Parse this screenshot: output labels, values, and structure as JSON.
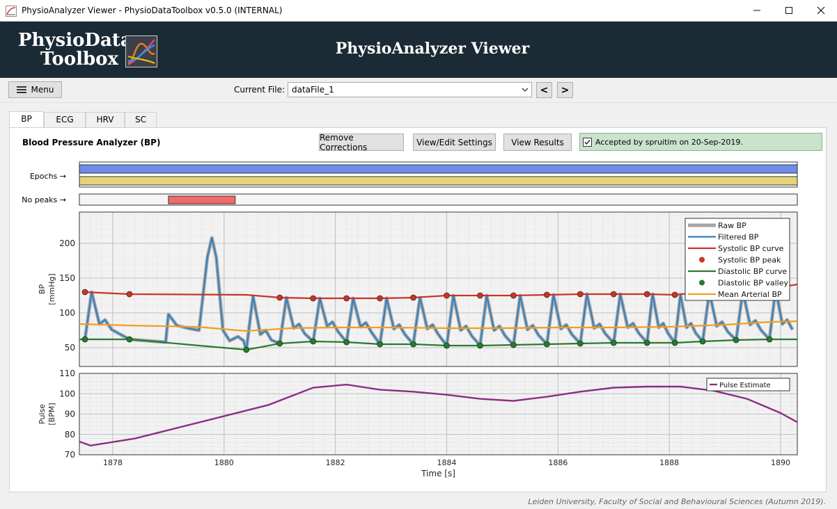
{
  "window": {
    "title": "PhysioAnalyzer Viewer  -  PhysioDataToolbox v0.5.0 (INTERNAL)",
    "icon": "app-icon",
    "controls": [
      "minimize-icon",
      "maximize-icon",
      "close-icon"
    ]
  },
  "header": {
    "logo_line1": "PhysioData",
    "logo_line2": "Toolbox",
    "title": "PhysioAnalyzer Viewer"
  },
  "toolbar": {
    "menu_label": "Menu",
    "current_file_label": "Current File:",
    "current_file_value": "dataFile_1",
    "prev_label": "<",
    "next_label": ">"
  },
  "tabs": [
    {
      "label": "BP",
      "active": true
    },
    {
      "label": "ECG",
      "active": false
    },
    {
      "label": "HRV",
      "active": false
    },
    {
      "label": "SC",
      "active": false
    }
  ],
  "panel": {
    "title": "Blood Pressure Analyzer (BP)",
    "remove_corrections": "Remove Corrections",
    "view_edit_settings": "View/Edit Settings",
    "view_results": "View Results",
    "accepted_text": "Accepted by spruitim on 20-Sep-2019.",
    "accepted_checked": true,
    "accepted_color": "#c9e3cc"
  },
  "epochs": {
    "label": "Epochs →",
    "bars": [
      {
        "color": "#6f8ce8",
        "start": 1877.4,
        "end": 1890.3
      },
      {
        "color": "#e6d37a",
        "start": 1877.4,
        "end": 1890.3
      }
    ]
  },
  "no_peaks": {
    "label": "No peaks →",
    "color": "#f26a6a",
    "start": 1879.0,
    "end": 1880.2
  },
  "chart_data": [
    {
      "type": "line",
      "ylabel": "BP\n[mmHg]",
      "ylabel_line1": "BP",
      "ylabel_line2": "[mmHg]",
      "xlim": [
        1877.4,
        1890.3
      ],
      "ylim": [
        23,
        245
      ],
      "yticks": [
        50,
        100,
        150,
        200
      ],
      "grid": true,
      "legend_position": "top-right",
      "series": [
        {
          "name": "Raw BP",
          "color": "#a6a6a6"
        },
        {
          "name": "Filtered BP",
          "color": "#2f7fc1"
        },
        {
          "name": "Systolic BP curve",
          "color": "#c8332b",
          "x": [
            1877.5,
            1878.3,
            1880.4,
            1881.0,
            1881.6,
            1882.2,
            1882.8,
            1883.4,
            1884.0,
            1884.6,
            1885.2,
            1885.8,
            1886.4,
            1887.0,
            1887.6,
            1888.1,
            1888.6,
            1889.2,
            1889.8,
            1890.3
          ],
          "y": [
            130,
            127,
            126,
            122,
            121,
            121,
            121,
            122,
            125,
            125,
            125,
            126,
            127,
            127,
            127,
            126,
            130,
            131,
            134,
            141
          ]
        },
        {
          "name": "Systolic BP peak",
          "color": "#c0392b",
          "x": [
            1877.5,
            1878.3,
            1881.0,
            1881.6,
            1882.2,
            1882.8,
            1883.4,
            1884.0,
            1884.6,
            1885.2,
            1885.8,
            1886.4,
            1887.0,
            1887.6,
            1888.1,
            1888.6,
            1889.2,
            1889.8
          ],
          "y": [
            130,
            127,
            122,
            121,
            121,
            121,
            122,
            125,
            125,
            125,
            126,
            127,
            127,
            127,
            126,
            130,
            131,
            134
          ]
        },
        {
          "name": "Diastolic BP curve",
          "color": "#2a7a2e",
          "x": [
            1877.4,
            1877.5,
            1878.3,
            1880.4,
            1881.0,
            1881.6,
            1882.2,
            1882.8,
            1883.4,
            1884.0,
            1884.6,
            1885.2,
            1885.8,
            1886.4,
            1887.0,
            1887.6,
            1888.1,
            1888.6,
            1889.2,
            1889.8,
            1890.3
          ],
          "y": [
            62,
            62,
            62,
            47,
            56,
            59,
            58,
            55,
            55,
            53,
            53,
            54,
            55,
            56,
            57,
            57,
            57,
            59,
            61,
            62,
            62
          ]
        },
        {
          "name": "Diastolic BP valley",
          "color": "#2a7a2e",
          "x": [
            1877.5,
            1878.3,
            1880.4,
            1881.0,
            1881.6,
            1882.2,
            1882.8,
            1883.4,
            1884.0,
            1884.6,
            1885.2,
            1885.8,
            1886.4,
            1887.0,
            1887.6,
            1888.1,
            1888.6,
            1889.2,
            1889.8
          ],
          "y": [
            62,
            62,
            47,
            56,
            59,
            58,
            55,
            55,
            53,
            53,
            54,
            55,
            56,
            57,
            57,
            57,
            59,
            61,
            62
          ]
        },
        {
          "name": "Mean Arterial BP",
          "color": "#f39c1f",
          "x": [
            1877.4,
            1878.3,
            1879.5,
            1880.4,
            1881.2,
            1882.0,
            1883.0,
            1884.0,
            1885.0,
            1886.0,
            1887.0,
            1888.0,
            1889.0,
            1889.8,
            1890.3
          ],
          "y": [
            84,
            82,
            80,
            74,
            78,
            79,
            79,
            78,
            78,
            79,
            79,
            80,
            83,
            87,
            88
          ]
        }
      ]
    },
    {
      "type": "line",
      "xlabel": "Time [s]",
      "ylabel": "Pulse\n[BPM]",
      "ylabel_line1": "Pulse",
      "ylabel_line2": "[BPM]",
      "xlim": [
        1877.4,
        1890.3
      ],
      "ylim": [
        70,
        110
      ],
      "yticks": [
        70,
        80,
        90,
        100,
        110
      ],
      "xticks": [
        1878,
        1880,
        1882,
        1884,
        1886,
        1888,
        1890
      ],
      "grid": true,
      "legend_position": "top-right",
      "series": [
        {
          "name": "Pulse Estimate",
          "color": "#8e2d83",
          "x": [
            1877.4,
            1877.6,
            1878.4,
            1879.2,
            1880.0,
            1880.8,
            1881.6,
            1882.2,
            1882.8,
            1883.4,
            1884.0,
            1884.6,
            1885.2,
            1885.8,
            1886.4,
            1887.0,
            1887.6,
            1888.2,
            1888.8,
            1889.4,
            1890.0,
            1890.3
          ],
          "y": [
            76.5,
            74.5,
            78,
            83.5,
            89,
            94.5,
            103,
            104.5,
            102,
            101,
            99.5,
            97.5,
            96.5,
            98.5,
            101,
            103,
            103.5,
            103.5,
            101.5,
            97.5,
            90.5,
            86
          ]
        }
      ]
    }
  ],
  "footer": "Leiden University, Faculty of Social and Behavioural Sciences (Autumn 2019)."
}
